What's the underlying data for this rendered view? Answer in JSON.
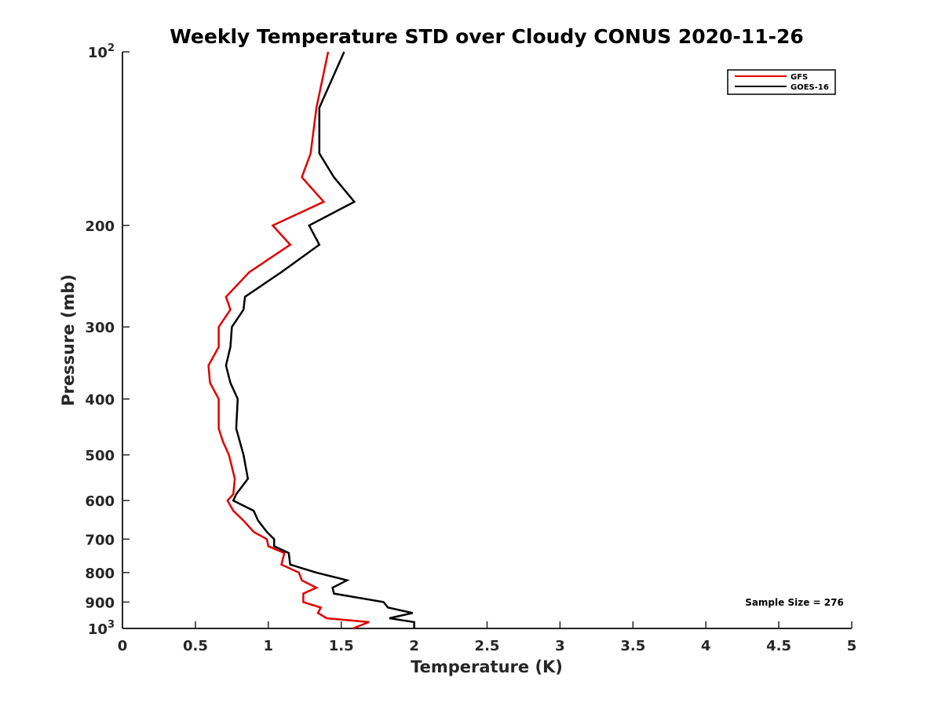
{
  "chart_data": {
    "type": "line",
    "title": "Weekly Temperature STD over Cloudy CONUS 2020-11-26",
    "xlabel": "Temperature (K)",
    "ylabel": "Pressure (mb)",
    "xlim": [
      0,
      5
    ],
    "ylim": [
      100,
      1000
    ],
    "y_scale": "log",
    "y_reversed": true,
    "grid": false,
    "legend_position": "top-right",
    "x_ticks": [
      {
        "value": 0,
        "label": "0"
      },
      {
        "value": 0.5,
        "label": "0.5"
      },
      {
        "value": 1,
        "label": "1"
      },
      {
        "value": 1.5,
        "label": "1.5"
      },
      {
        "value": 2,
        "label": "2"
      },
      {
        "value": 2.5,
        "label": "2.5"
      },
      {
        "value": 3,
        "label": "3"
      },
      {
        "value": 3.5,
        "label": "3.5"
      },
      {
        "value": 4,
        "label": "4"
      },
      {
        "value": 4.5,
        "label": "4.5"
      },
      {
        "value": 5,
        "label": "5"
      }
    ],
    "y_ticks": [
      {
        "value": 100,
        "label": "10",
        "sup": "2"
      },
      {
        "value": 200,
        "label": "200"
      },
      {
        "value": 300,
        "label": "300"
      },
      {
        "value": 400,
        "label": "400"
      },
      {
        "value": 500,
        "label": "500"
      },
      {
        "value": 600,
        "label": "600"
      },
      {
        "value": 700,
        "label": "700"
      },
      {
        "value": 800,
        "label": "800"
      },
      {
        "value": 900,
        "label": "900"
      },
      {
        "value": 1000,
        "label": "10",
        "sup": "3"
      }
    ],
    "annotation": "Sample Size = 276",
    "series": [
      {
        "name": "GFS",
        "color": "#e00000",
        "points": [
          [
            1.41,
            100
          ],
          [
            1.33,
            125
          ],
          [
            1.29,
            150
          ],
          [
            1.23,
            165
          ],
          [
            1.38,
            182
          ],
          [
            1.03,
            200
          ],
          [
            1.15,
            216
          ],
          [
            0.87,
            241
          ],
          [
            0.71,
            266
          ],
          [
            0.74,
            280
          ],
          [
            0.66,
            300
          ],
          [
            0.66,
            325
          ],
          [
            0.59,
            350
          ],
          [
            0.6,
            375
          ],
          [
            0.66,
            400
          ],
          [
            0.66,
            450
          ],
          [
            0.69,
            475
          ],
          [
            0.73,
            500
          ],
          [
            0.77,
            550
          ],
          [
            0.76,
            585
          ],
          [
            0.72,
            600
          ],
          [
            0.76,
            625
          ],
          [
            0.83,
            650
          ],
          [
            0.9,
            680
          ],
          [
            0.99,
            700
          ],
          [
            1.0,
            720
          ],
          [
            1.11,
            740
          ],
          [
            1.09,
            775
          ],
          [
            1.21,
            800
          ],
          [
            1.23,
            825
          ],
          [
            1.33,
            850
          ],
          [
            1.24,
            870
          ],
          [
            1.24,
            900
          ],
          [
            1.36,
            920
          ],
          [
            1.34,
            940
          ],
          [
            1.4,
            960
          ],
          [
            1.69,
            975
          ],
          [
            1.58,
            1000
          ]
        ]
      },
      {
        "name": "GOES-16",
        "color": "#000000",
        "points": [
          [
            1.52,
            100
          ],
          [
            1.35,
            125
          ],
          [
            1.35,
            150
          ],
          [
            1.45,
            165
          ],
          [
            1.59,
            182
          ],
          [
            1.28,
            200
          ],
          [
            1.35,
            216
          ],
          [
            1.09,
            241
          ],
          [
            0.84,
            266
          ],
          [
            0.83,
            280
          ],
          [
            0.75,
            300
          ],
          [
            0.74,
            325
          ],
          [
            0.71,
            350
          ],
          [
            0.74,
            375
          ],
          [
            0.79,
            400
          ],
          [
            0.78,
            450
          ],
          [
            0.83,
            500
          ],
          [
            0.86,
            550
          ],
          [
            0.78,
            585
          ],
          [
            0.76,
            600
          ],
          [
            0.9,
            625
          ],
          [
            0.93,
            650
          ],
          [
            0.99,
            680
          ],
          [
            1.04,
            700
          ],
          [
            1.04,
            720
          ],
          [
            1.14,
            740
          ],
          [
            1.15,
            775
          ],
          [
            1.33,
            800
          ],
          [
            1.54,
            825
          ],
          [
            1.44,
            850
          ],
          [
            1.45,
            870
          ],
          [
            1.79,
            900
          ],
          [
            1.82,
            920
          ],
          [
            1.99,
            940
          ],
          [
            1.83,
            960
          ],
          [
            2.0,
            975
          ],
          [
            2.0,
            1000
          ]
        ]
      }
    ]
  }
}
